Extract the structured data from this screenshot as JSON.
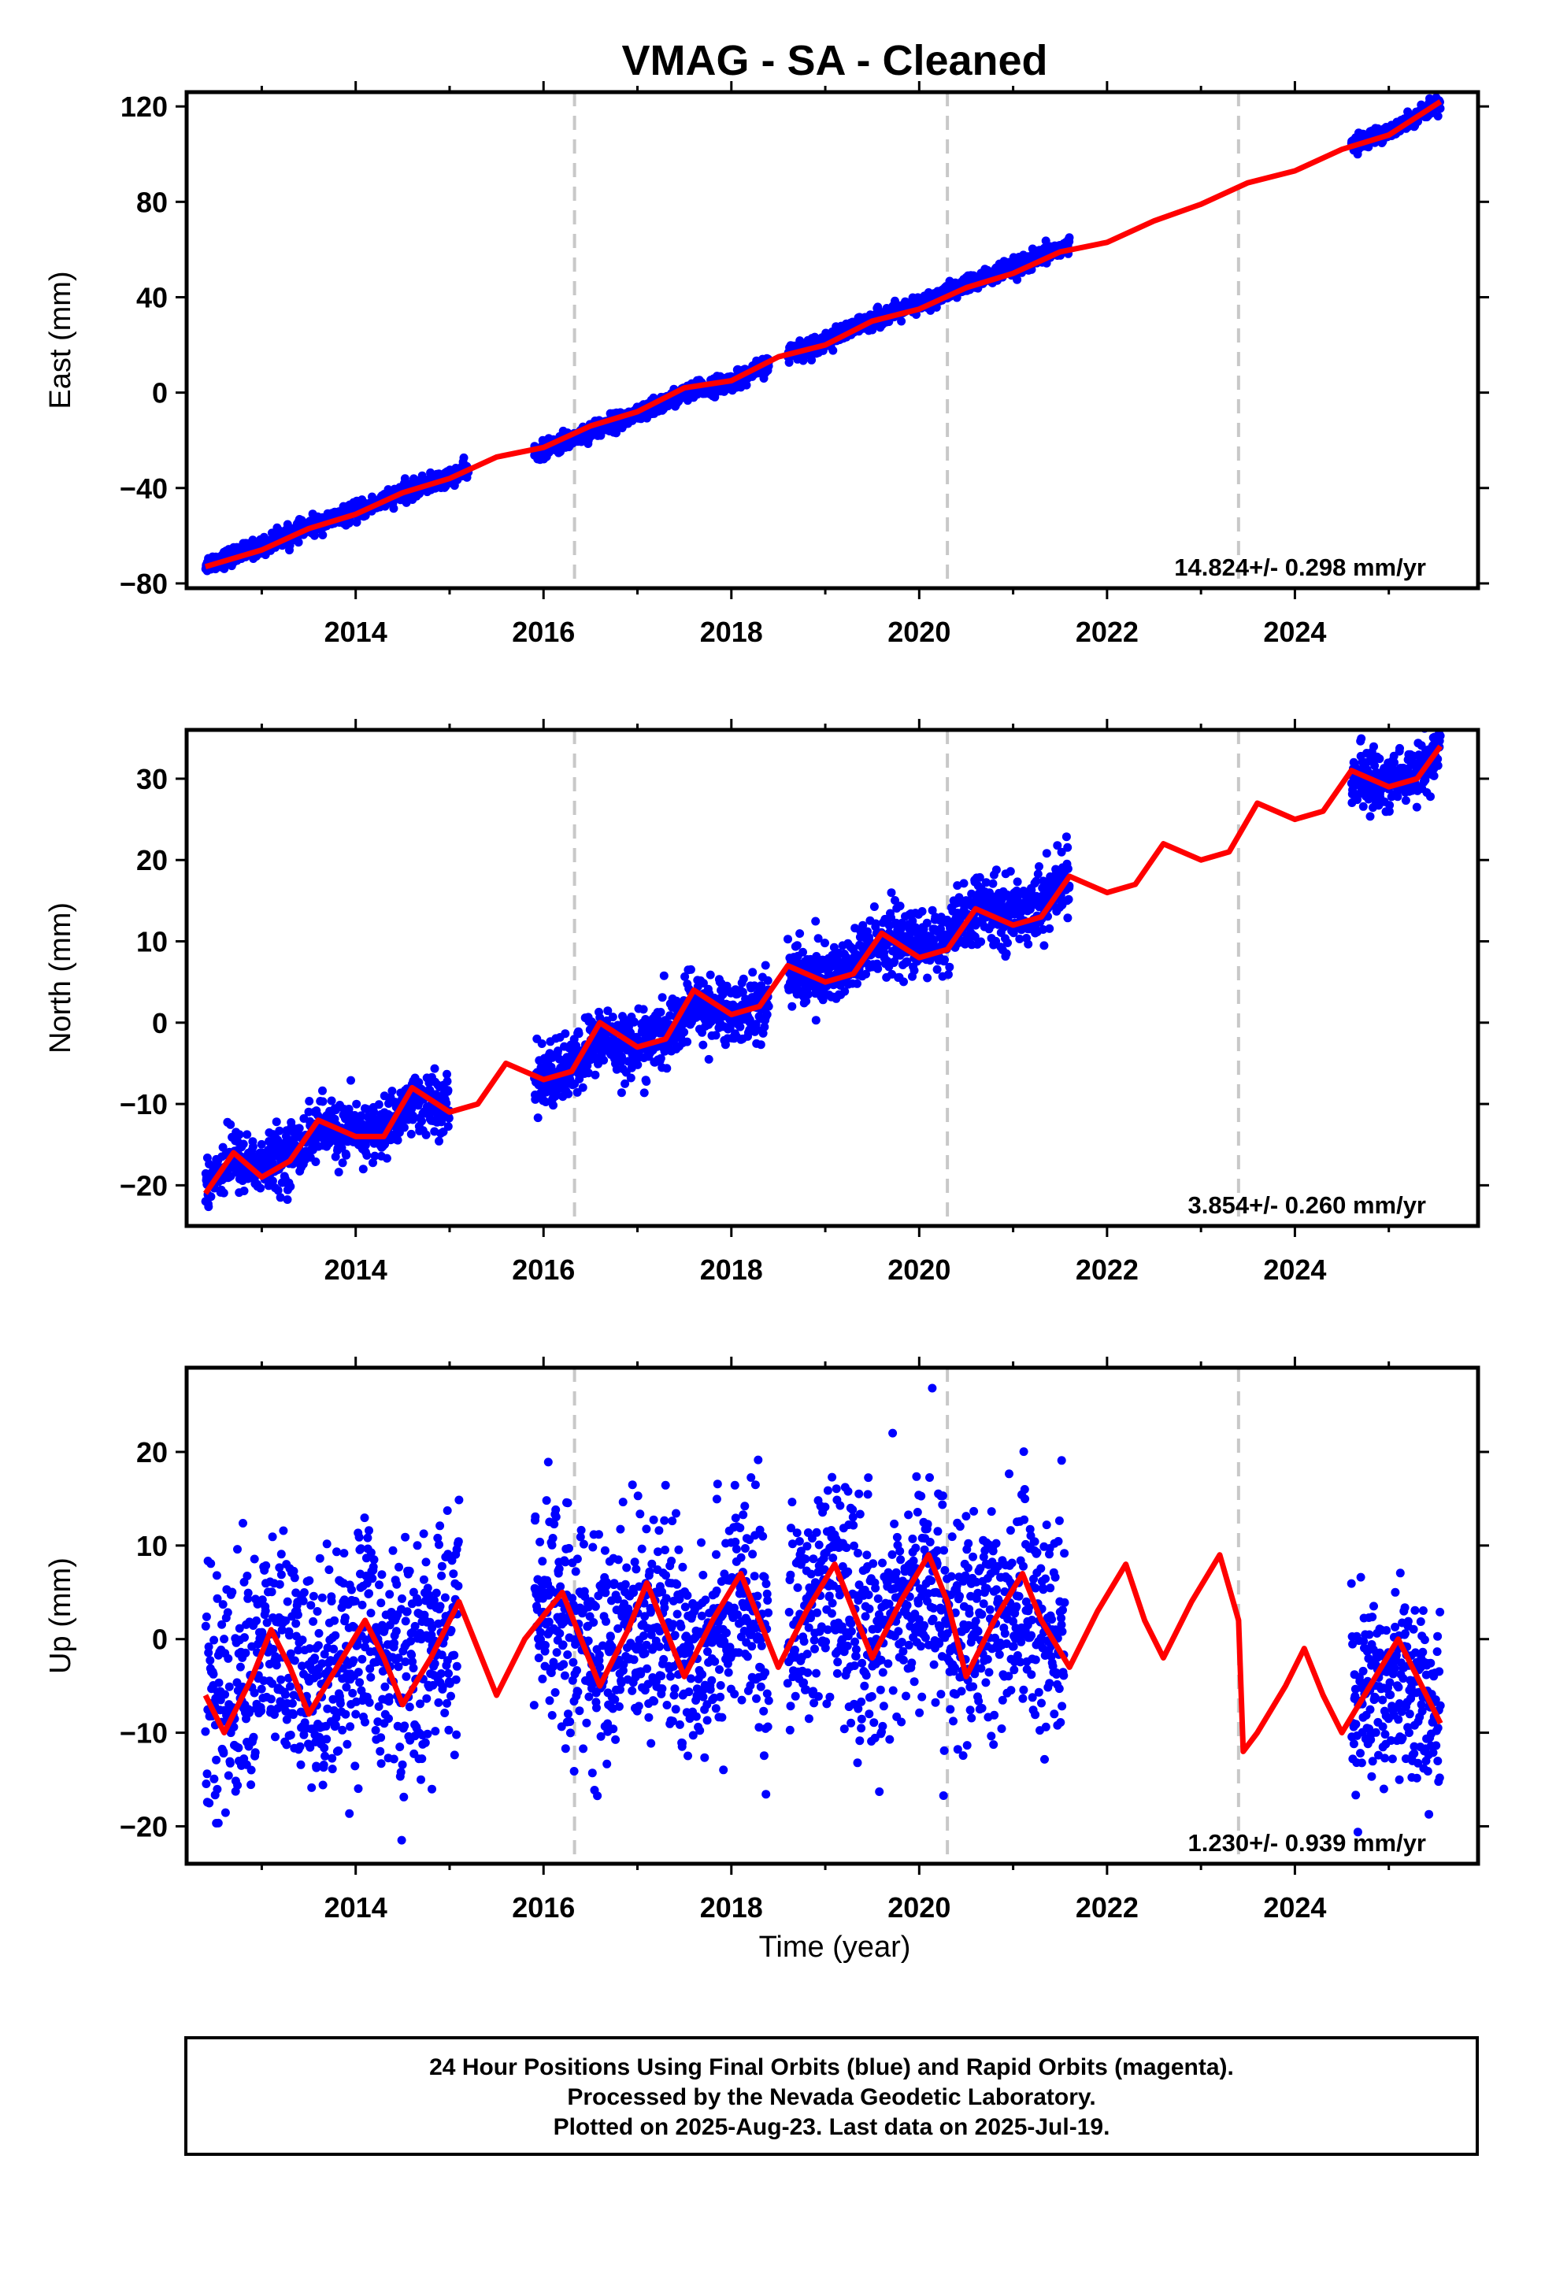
{
  "title": "VMAG  - SA - Cleaned",
  "xlabel": "Time (year)",
  "footer": {
    "line1": "24 Hour Positions Using Final Orbits (blue) and Rapid Orbits (magenta).",
    "line2": "Processed by the Nevada Geodetic Laboratory.",
    "line3": "Plotted on 2025-Aug-23. Last data on 2025-Jul-19."
  },
  "colors": {
    "points": "#0000ff",
    "model": "#ff0000",
    "event_lines": "#c8c8c8",
    "frame": "#000000"
  },
  "chart_data": [
    {
      "type": "scatter",
      "ylabel": "East (mm)",
      "xlim": [
        2012.2,
        2025.95
      ],
      "ylim": [
        -82,
        126
      ],
      "xticks": [
        2014,
        2016,
        2018,
        2020,
        2022,
        2024
      ],
      "yticks": [
        -80,
        -40,
        0,
        40,
        80,
        120
      ],
      "rate": "14.824+/- 0.298 mm/yr",
      "event_lines_x": [
        2016.33,
        2020.3,
        2023.4
      ],
      "grid": false,
      "series": [
        {
          "kind": "points",
          "segments": [
            {
              "x0": 2012.4,
              "x1": 2015.2,
              "start": -71,
              "end": -32,
              "noise": 1.8
            },
            {
              "x0": 2015.9,
              "x1": 2018.4,
              "start": -27,
              "end": 10,
              "noise": 1.8
            },
            {
              "x0": 2018.6,
              "x1": 2021.6,
              "start": 17,
              "end": 64,
              "noise": 1.8
            },
            {
              "x0": 2024.6,
              "x1": 2025.55,
              "start": 105,
              "end": 121,
              "noise": 1.5
            }
          ]
        },
        {
          "kind": "model_line",
          "points": [
            [
              2012.4,
              -73
            ],
            [
              2013.0,
              -66
            ],
            [
              2013.5,
              -57
            ],
            [
              2014.0,
              -51
            ],
            [
              2014.5,
              -42
            ],
            [
              2015.0,
              -36
            ],
            [
              2015.5,
              -27
            ],
            [
              2016.0,
              -23
            ],
            [
              2016.5,
              -14
            ],
            [
              2017.0,
              -8
            ],
            [
              2017.5,
              2
            ],
            [
              2018.0,
              5
            ],
            [
              2018.5,
              15
            ],
            [
              2019.0,
              20
            ],
            [
              2019.5,
              30
            ],
            [
              2020.0,
              35
            ],
            [
              2020.5,
              44
            ],
            [
              2021.0,
              50
            ],
            [
              2021.5,
              59
            ],
            [
              2022.0,
              63
            ],
            [
              2022.5,
              72
            ],
            [
              2023.0,
              79
            ],
            [
              2023.5,
              88
            ],
            [
              2024.0,
              93
            ],
            [
              2024.5,
              102
            ],
            [
              2025.0,
              108
            ],
            [
              2025.55,
              122
            ]
          ]
        }
      ]
    },
    {
      "type": "scatter",
      "ylabel": "North (mm)",
      "xlim": [
        2012.2,
        2025.95
      ],
      "ylim": [
        -25,
        36
      ],
      "xticks": [
        2014,
        2016,
        2018,
        2020,
        2022,
        2024
      ],
      "yticks": [
        -20,
        -10,
        0,
        10,
        20,
        30
      ],
      "rate": "3.854+/- 0.260 mm/yr",
      "event_lines_x": [
        2016.33,
        2020.3,
        2023.4
      ],
      "grid": false,
      "series": [
        {
          "kind": "points",
          "segments": [
            {
              "x0": 2012.4,
              "x1": 2015.0,
              "start": -18,
              "end": -10,
              "noise": 1.8
            },
            {
              "x0": 2015.9,
              "x1": 2018.4,
              "start": -7,
              "end": 3,
              "noise": 2.0
            },
            {
              "x0": 2018.6,
              "x1": 2021.6,
              "start": 5,
              "end": 18,
              "noise": 2.0
            },
            {
              "x0": 2024.6,
              "x1": 2025.55,
              "start": 29,
              "end": 33,
              "noise": 1.8
            }
          ]
        },
        {
          "kind": "model_line",
          "points": [
            [
              2012.4,
              -21
            ],
            [
              2012.7,
              -16
            ],
            [
              2013.0,
              -19
            ],
            [
              2013.3,
              -17
            ],
            [
              2013.6,
              -12
            ],
            [
              2014.0,
              -14
            ],
            [
              2014.3,
              -14
            ],
            [
              2014.6,
              -8
            ],
            [
              2015.0,
              -11
            ],
            [
              2015.3,
              -10
            ],
            [
              2015.6,
              -5
            ],
            [
              2016.0,
              -7
            ],
            [
              2016.3,
              -6
            ],
            [
              2016.6,
              0
            ],
            [
              2017.0,
              -3
            ],
            [
              2017.3,
              -2
            ],
            [
              2017.6,
              4
            ],
            [
              2018.0,
              1
            ],
            [
              2018.3,
              2
            ],
            [
              2018.6,
              7
            ],
            [
              2019.0,
              5
            ],
            [
              2019.3,
              6
            ],
            [
              2019.6,
              11
            ],
            [
              2020.0,
              8
            ],
            [
              2020.3,
              9
            ],
            [
              2020.6,
              14
            ],
            [
              2021.0,
              12
            ],
            [
              2021.3,
              13
            ],
            [
              2021.6,
              18
            ],
            [
              2022.0,
              16
            ],
            [
              2022.3,
              17
            ],
            [
              2022.6,
              22
            ],
            [
              2023.0,
              20
            ],
            [
              2023.3,
              21
            ],
            [
              2023.6,
              27
            ],
            [
              2024.0,
              25
            ],
            [
              2024.3,
              26
            ],
            [
              2024.6,
              31
            ],
            [
              2025.0,
              29
            ],
            [
              2025.3,
              30
            ],
            [
              2025.55,
              34
            ]
          ]
        }
      ]
    },
    {
      "type": "scatter",
      "ylabel": "Up (mm)",
      "xlim": [
        2012.2,
        2025.95
      ],
      "ylim": [
        -24,
        29
      ],
      "xticks": [
        2014,
        2016,
        2018,
        2020,
        2022,
        2024
      ],
      "yticks": [
        -20,
        -10,
        0,
        10,
        20
      ],
      "rate": "1.230+/- 0.939 mm/yr",
      "event_lines_x": [
        2016.33,
        2020.3,
        2023.4
      ],
      "grid": false,
      "series": [
        {
          "kind": "points",
          "segments": [
            {
              "x0": 2012.4,
              "x1": 2015.1,
              "start": -3,
              "end": 0,
              "noise": 6.0
            },
            {
              "x0": 2015.9,
              "x1": 2018.4,
              "start": 1,
              "end": 0,
              "noise": 6.0
            },
            {
              "x0": 2018.6,
              "x1": 2021.55,
              "start": 2,
              "end": 2,
              "noise": 6.0
            },
            {
              "x0": 2024.6,
              "x1": 2025.55,
              "start": -4,
              "end": -9,
              "noise": 5.0
            }
          ]
        },
        {
          "kind": "model_line",
          "points": [
            [
              2012.4,
              -6
            ],
            [
              2012.6,
              -10
            ],
            [
              2012.9,
              -4
            ],
            [
              2013.1,
              1
            ],
            [
              2013.3,
              -3
            ],
            [
              2013.5,
              -8
            ],
            [
              2013.8,
              -3
            ],
            [
              2014.1,
              2
            ],
            [
              2014.3,
              -2
            ],
            [
              2014.5,
              -7
            ],
            [
              2014.8,
              -2
            ],
            [
              2015.1,
              4
            ],
            [
              2015.3,
              -1
            ],
            [
              2015.5,
              -6
            ],
            [
              2015.8,
              0
            ],
            [
              2016.2,
              5
            ],
            [
              2016.4,
              0
            ],
            [
              2016.6,
              -5
            ],
            [
              2016.9,
              1
            ],
            [
              2017.1,
              6
            ],
            [
              2017.3,
              1
            ],
            [
              2017.5,
              -4
            ],
            [
              2017.8,
              2
            ],
            [
              2018.1,
              7
            ],
            [
              2018.3,
              2
            ],
            [
              2018.5,
              -3
            ],
            [
              2018.8,
              3
            ],
            [
              2019.1,
              8
            ],
            [
              2019.3,
              3
            ],
            [
              2019.5,
              -2
            ],
            [
              2019.8,
              4
            ],
            [
              2020.1,
              9
            ],
            [
              2020.3,
              4
            ],
            [
              2020.5,
              -4
            ],
            [
              2020.8,
              2
            ],
            [
              2021.1,
              7
            ],
            [
              2021.3,
              2
            ],
            [
              2021.6,
              -3
            ],
            [
              2021.9,
              3
            ],
            [
              2022.2,
              8
            ],
            [
              2022.4,
              2
            ],
            [
              2022.6,
              -2
            ],
            [
              2022.9,
              4
            ],
            [
              2023.2,
              9
            ],
            [
              2023.4,
              2
            ],
            [
              2023.45,
              -12
            ],
            [
              2023.6,
              -10
            ],
            [
              2023.9,
              -5
            ],
            [
              2024.1,
              -1
            ],
            [
              2024.3,
              -6
            ],
            [
              2024.5,
              -10
            ],
            [
              2024.8,
              -5
            ],
            [
              2025.1,
              0
            ],
            [
              2025.3,
              -4
            ],
            [
              2025.55,
              -9
            ]
          ]
        }
      ]
    }
  ]
}
